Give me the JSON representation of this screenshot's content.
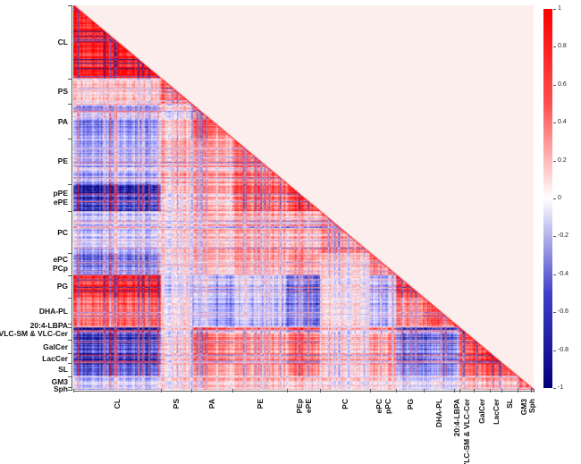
{
  "chart_data": {
    "type": "heatmap",
    "title": "",
    "triangle": "lower",
    "groups": [
      "CL",
      "PS",
      "PA",
      "PE",
      "pPE/ePE",
      "PC",
      "ePC/PCp",
      "PG",
      "DHA-PL",
      "20:4-LBPA",
      "VLC-SM & VLC-Cer",
      "GalCer",
      "LacCer",
      "SL",
      "GM3",
      "Sph"
    ],
    "y_labels": [
      "CL",
      "PS",
      "PA",
      "PE",
      "pPE\nePE",
      "PC",
      "ePC\nPCp",
      "PG",
      "DHA-PL",
      "20:4-LBPA",
      "VLC-SM & VLC-Cer",
      "GalCer",
      "LacCer",
      "SL",
      "GM3",
      "Sph"
    ],
    "x_labels": [
      "CL",
      "PS",
      "PA",
      "PE",
      "PEp\nePE",
      "PC",
      "ePC\npPC",
      "PG",
      "DHA-PL",
      "20:4-LBPA",
      "VLC-SM & VLC-Cer",
      "GalCer",
      "LacCer",
      "SL",
      "GM3",
      "Sph"
    ],
    "group_sizes": [
      96,
      34,
      45,
      60,
      36,
      55,
      29,
      30,
      34,
      5,
      16,
      18,
      13,
      17,
      15,
      3
    ],
    "mean_correlation_lower": [
      [
        0.9
      ],
      [
        0.1,
        0.5
      ],
      [
        -0.4,
        0.2,
        0.5
      ],
      [
        -0.3,
        0.3,
        0.3,
        0.5
      ],
      [
        -0.8,
        0.2,
        0.3,
        0.6,
        0.8
      ],
      [
        -0.2,
        0.1,
        0.2,
        0.3,
        0.3,
        0.4
      ],
      [
        -0.5,
        0.1,
        0.2,
        0.3,
        0.4,
        0.2,
        0.5
      ],
      [
        0.8,
        -0.1,
        -0.3,
        -0.2,
        -0.5,
        0.1,
        -0.3,
        0.7
      ],
      [
        0.5,
        0.0,
        -0.3,
        -0.2,
        -0.4,
        0.0,
        -0.2,
        0.4,
        0.6
      ],
      [
        0.4,
        0.0,
        -0.2,
        -0.2,
        -0.3,
        0.0,
        -0.2,
        0.3,
        0.4,
        0.8
      ],
      [
        -0.8,
        0.1,
        0.5,
        0.4,
        0.6,
        0.2,
        0.4,
        -0.6,
        -0.6,
        -0.5,
        0.8
      ],
      [
        -0.7,
        0.2,
        0.5,
        0.4,
        0.6,
        0.2,
        0.4,
        -0.5,
        -0.5,
        -0.4,
        0.7,
        0.8
      ],
      [
        -0.7,
        0.1,
        0.4,
        0.3,
        0.5,
        0.2,
        0.3,
        -0.5,
        -0.4,
        -0.4,
        0.6,
        0.7,
        0.8
      ],
      [
        -0.7,
        0.2,
        0.4,
        0.4,
        0.6,
        0.2,
        0.4,
        -0.5,
        -0.5,
        -0.4,
        0.7,
        0.7,
        0.7,
        0.8
      ],
      [
        -0.2,
        0.1,
        0.2,
        0.2,
        0.2,
        0.1,
        0.1,
        -0.1,
        -0.1,
        -0.1,
        0.3,
        0.3,
        0.3,
        0.3,
        0.5
      ],
      [
        -0.3,
        0.0,
        0.2,
        0.2,
        0.2,
        0.1,
        0.1,
        -0.1,
        -0.1,
        -0.1,
        0.3,
        0.3,
        0.3,
        0.3,
        0.4,
        0.8
      ]
    ],
    "colorbar": {
      "range": [
        -1,
        1
      ],
      "ticks": [
        "1",
        "0.8",
        "0.6",
        "0.4",
        "0.2",
        "0",
        "-0.2",
        "-0.4",
        "-0.6",
        "-0.8",
        "-1"
      ],
      "colors": {
        "max": "#ff0000",
        "mid": "#ffffff",
        "min": "#00007a"
      }
    },
    "upper_triangle_color": "#fdeeee"
  }
}
